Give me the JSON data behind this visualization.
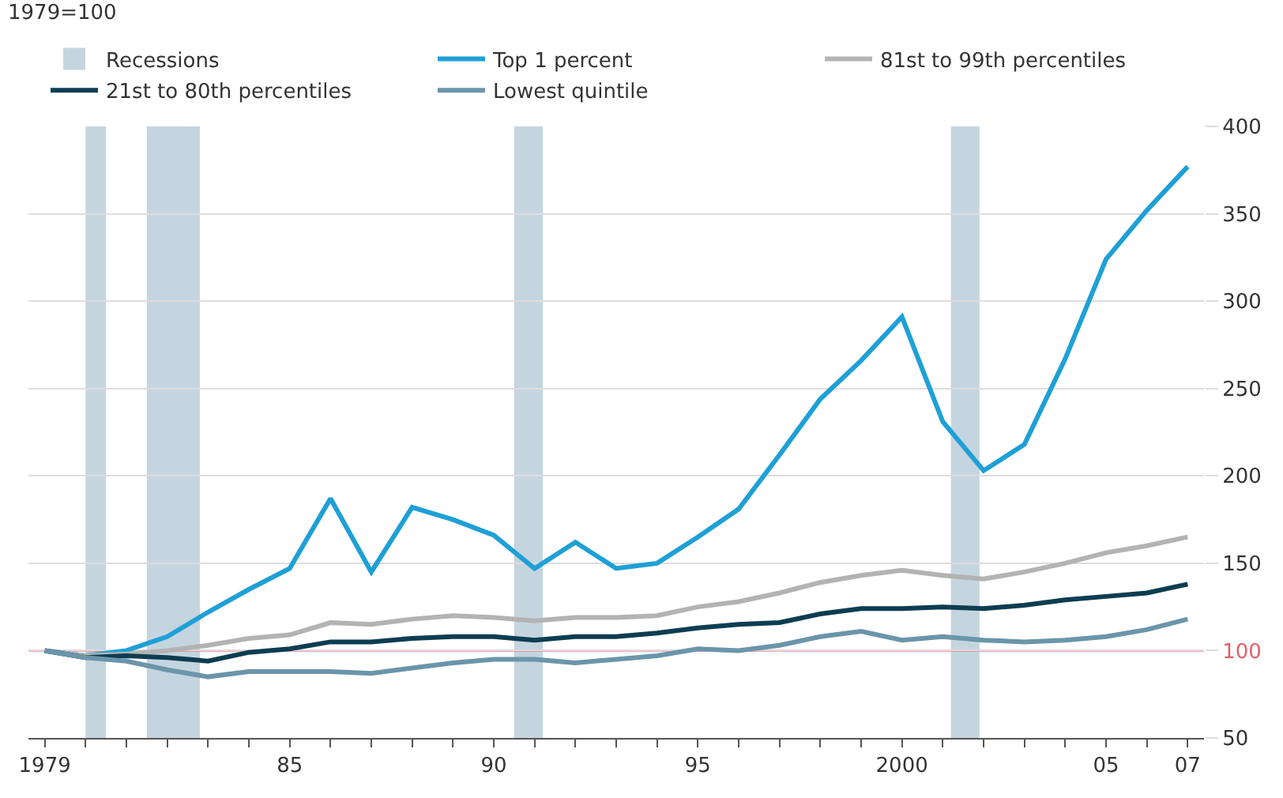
{
  "chart_data": {
    "type": "line",
    "subtitle": "1979=100",
    "x": [
      1979,
      1980,
      1981,
      1982,
      1983,
      1984,
      1985,
      1986,
      1987,
      1988,
      1989,
      1990,
      1991,
      1992,
      1993,
      1994,
      1995,
      1996,
      1997,
      1998,
      1999,
      2000,
      2001,
      2002,
      2003,
      2004,
      2005,
      2006,
      2007
    ],
    "series": [
      {
        "name": "Top 1 percent",
        "color": "#1ea0d6",
        "values": [
          100,
          97,
          100,
          108,
          122,
          135,
          147,
          187,
          145,
          182,
          175,
          166,
          147,
          162,
          147,
          150,
          165,
          181,
          212,
          244,
          266,
          291,
          231,
          203,
          218,
          267,
          324,
          352,
          377
        ]
      },
      {
        "name": "81st to 99th percentiles",
        "color": "#b3b3b3",
        "values": [
          100,
          97,
          98,
          100,
          103,
          107,
          109,
          116,
          115,
          118,
          120,
          119,
          117,
          119,
          119,
          120,
          125,
          128,
          133,
          139,
          143,
          146,
          143,
          141,
          145,
          150,
          156,
          160,
          165
        ]
      },
      {
        "name": "21st to 80th percentiles",
        "color": "#0d3d52",
        "values": [
          100,
          96,
          97,
          96,
          94,
          99,
          101,
          105,
          105,
          107,
          108,
          108,
          106,
          108,
          108,
          110,
          113,
          115,
          116,
          121,
          124,
          124,
          125,
          124,
          126,
          129,
          131,
          133,
          138
        ]
      },
      {
        "name": "Lowest quintile",
        "color": "#6b95ab",
        "values": [
          100,
          96,
          94,
          89,
          85,
          88,
          88,
          88,
          87,
          90,
          93,
          95,
          95,
          93,
          95,
          97,
          101,
          100,
          103,
          108,
          111,
          106,
          108,
          106,
          105,
          106,
          108,
          112,
          118
        ]
      }
    ],
    "bands": [
      {
        "axis": "x",
        "from": 1980.0,
        "to": 1980.5,
        "label": "Recessions",
        "color": "#c5d5e0"
      },
      {
        "axis": "x",
        "from": 1981.5,
        "to": 1982.8,
        "color": "#c5d5e0"
      },
      {
        "axis": "x",
        "from": 1990.5,
        "to": 1991.2,
        "color": "#c5d5e0"
      },
      {
        "axis": "x",
        "from": 2001.2,
        "to": 2001.9,
        "color": "#c5d5e0"
      }
    ],
    "ref_lines": [
      {
        "axis": "y",
        "value": 100,
        "color": "#e0606b"
      }
    ],
    "xlim": [
      1978.6,
      2007.4
    ],
    "xticks": [
      {
        "value": 1979,
        "label": "1979"
      },
      {
        "value": 1980,
        "label": null
      },
      {
        "value": 1981,
        "label": null
      },
      {
        "value": 1982,
        "label": null
      },
      {
        "value": 1983,
        "label": null
      },
      {
        "value": 1984,
        "label": null
      },
      {
        "value": 1985,
        "label": "85"
      },
      {
        "value": 1986,
        "label": null
      },
      {
        "value": 1987,
        "label": null
      },
      {
        "value": 1988,
        "label": null
      },
      {
        "value": 1989,
        "label": null
      },
      {
        "value": 1990,
        "label": "90"
      },
      {
        "value": 1991,
        "label": null
      },
      {
        "value": 1992,
        "label": null
      },
      {
        "value": 1993,
        "label": null
      },
      {
        "value": 1994,
        "label": null
      },
      {
        "value": 1995,
        "label": "95"
      },
      {
        "value": 1996,
        "label": null
      },
      {
        "value": 1997,
        "label": null
      },
      {
        "value": 1998,
        "label": null
      },
      {
        "value": 1999,
        "label": null
      },
      {
        "value": 2000,
        "label": "2000"
      },
      {
        "value": 2001,
        "label": null
      },
      {
        "value": 2002,
        "label": null
      },
      {
        "value": 2003,
        "label": null
      },
      {
        "value": 2004,
        "label": null
      },
      {
        "value": 2005,
        "label": "05"
      },
      {
        "value": 2006,
        "label": null
      },
      {
        "value": 2007,
        "label": "07"
      }
    ],
    "ylim": [
      50,
      400
    ],
    "yticks": [
      50,
      100,
      150,
      200,
      250,
      300,
      350,
      400
    ],
    "grid": "y",
    "legend": "top",
    "marker": "none",
    "line_style": "solid"
  }
}
